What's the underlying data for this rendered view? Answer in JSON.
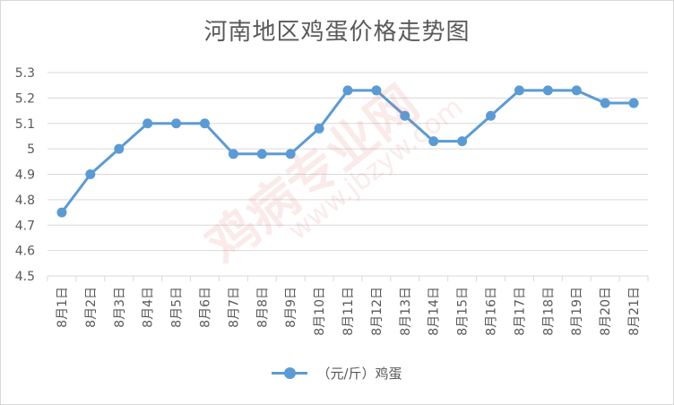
{
  "chart_data": {
    "type": "line",
    "title": "河南地区鸡蛋价格走势图",
    "categories": [
      "8月1日",
      "8月2日",
      "8月3日",
      "8月4日",
      "8月5日",
      "8月6日",
      "8月7日",
      "8月8日",
      "8月9日",
      "8月10日",
      "8月11日",
      "8月12日",
      "8月13日",
      "8月14日",
      "8月15日",
      "8月16日",
      "8月17日",
      "8月18日",
      "8月19日",
      "8月20日",
      "8月21日"
    ],
    "series": [
      {
        "name": "（元/斤）鸡蛋",
        "values": [
          4.75,
          4.9,
          5.0,
          5.1,
          5.1,
          5.1,
          4.98,
          4.98,
          4.98,
          5.08,
          5.23,
          5.23,
          5.13,
          5.03,
          5.03,
          5.13,
          5.23,
          5.23,
          5.23,
          5.18,
          5.18
        ]
      }
    ],
    "ylim": [
      4.5,
      5.3
    ],
    "yticks": [
      4.5,
      4.6,
      4.7,
      4.8,
      4.9,
      5,
      5.1,
      5.2,
      5.3
    ],
    "grid": true,
    "legend": "bottom",
    "color": "#5b9bd5"
  },
  "watermark": {
    "main": "鸡病专业网",
    "sub": "www.jbzyw.com"
  }
}
